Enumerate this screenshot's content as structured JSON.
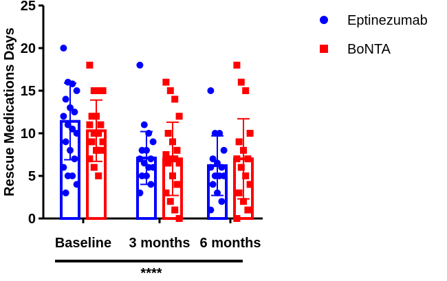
{
  "chart_data": {
    "type": "bar",
    "ylabel": "Rescue Medications Days",
    "xlabel": "",
    "ylim": [
      0,
      25
    ],
    "yticks": [
      0,
      5,
      10,
      15,
      20,
      25
    ],
    "categories": [
      "Baseline",
      "3 months",
      "6 months"
    ],
    "legend_position": "top-right",
    "series": [
      {
        "name": "Eptinezumab",
        "color": "#0000ff",
        "marker": "circle",
        "values": [
          11.4,
          7.1,
          6.2
        ],
        "sd": [
          4.5,
          3.1,
          3.5
        ],
        "points": [
          [
            20,
            16,
            15.8,
            15,
            14,
            13,
            12.5,
            12,
            11,
            10.5,
            10,
            9,
            8,
            7,
            6,
            5,
            5,
            4,
            3
          ],
          [
            18,
            11,
            10,
            9,
            8,
            8,
            7,
            7,
            6.5,
            6,
            6,
            5,
            5,
            4,
            3
          ],
          [
            15,
            10,
            10,
            8,
            7,
            6.5,
            6,
            6,
            5,
            5,
            5,
            4,
            3,
            2,
            1
          ]
        ]
      },
      {
        "name": "BoNTA",
        "color": "#ff0000",
        "marker": "square",
        "values": [
          10.3,
          7.0,
          7.0
        ],
        "sd": [
          3.6,
          4.3,
          4.7
        ],
        "points": [
          [
            18,
            15,
            15,
            15,
            12,
            12,
            11,
            11,
            10,
            10,
            9,
            9,
            8,
            8,
            7,
            6,
            5
          ],
          [
            16,
            15,
            14,
            12,
            10,
            9,
            8,
            7.5,
            7,
            7,
            6.5,
            6.5,
            5,
            4,
            3,
            2,
            1,
            0
          ],
          [
            18,
            16,
            15,
            10,
            9,
            8,
            7,
            7,
            6,
            5,
            4,
            3,
            2,
            1,
            0
          ]
        ]
      }
    ],
    "significance": "****"
  }
}
